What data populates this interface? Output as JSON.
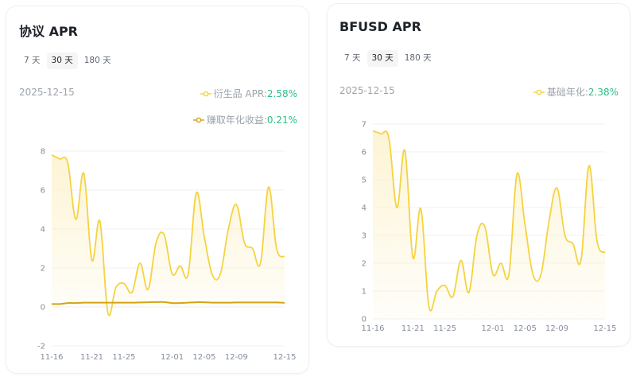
{
  "colors": {
    "derivatives_line": "#f5d33f",
    "earned_line": "#d4a414",
    "value_green": "#2ebd85",
    "grid": "#f0f0f0",
    "area_top": "#fdf3d0"
  },
  "left_card": {
    "title": "协议 APR",
    "tabs": [
      {
        "label": "7 天",
        "active": false
      },
      {
        "label": "30 天",
        "active": true
      },
      {
        "label": "180 天",
        "active": false
      }
    ],
    "date": "2025-12-15",
    "legend": [
      {
        "label": "衍生品 APR: ",
        "value": "2.58%"
      },
      {
        "label": "赚取年化收益: ",
        "value": "0.21%"
      }
    ]
  },
  "right_card": {
    "title": "BFUSD APR",
    "tabs": [
      {
        "label": "7 天",
        "active": false
      },
      {
        "label": "30 天",
        "active": true
      },
      {
        "label": "180 天",
        "active": false
      }
    ],
    "date": "2025-12-15",
    "legend": [
      {
        "label": "基础年化: ",
        "value": "2.38%"
      }
    ]
  },
  "chart_data": [
    {
      "type": "area",
      "title": "协议 APR",
      "xlabel": "",
      "ylabel": "",
      "ylim": [
        -2,
        8
      ],
      "yticks": [
        -2,
        0,
        2,
        4,
        6,
        8
      ],
      "xtick_labels": [
        "11-16",
        "11-21",
        "11-25",
        "12-01",
        "12-05",
        "12-09",
        "12-15"
      ],
      "grid": true,
      "legend_position": "top-right",
      "x": [
        "11-16",
        "11-17",
        "11-18",
        "11-19",
        "11-20",
        "11-21",
        "11-22",
        "11-23",
        "11-24",
        "11-25",
        "11-26",
        "11-27",
        "11-28",
        "11-29",
        "11-30",
        "12-01",
        "12-02",
        "12-03",
        "12-04",
        "12-05",
        "12-06",
        "12-07",
        "12-08",
        "12-09",
        "12-10",
        "12-11",
        "12-12",
        "12-13",
        "12-14",
        "12-15"
      ],
      "series": [
        {
          "name": "衍生品 APR",
          "values": [
            7.8,
            7.6,
            7.4,
            4.5,
            6.85,
            2.4,
            4.4,
            -0.3,
            1.0,
            1.2,
            0.75,
            2.25,
            0.9,
            3.3,
            3.7,
            1.7,
            2.1,
            1.7,
            5.85,
            3.6,
            1.65,
            1.7,
            4.0,
            5.25,
            3.3,
            3.0,
            2.25,
            6.15,
            3.0,
            2.58
          ]
        },
        {
          "name": "赚取年化收益",
          "values": [
            0.15,
            0.15,
            0.2,
            0.2,
            0.22,
            0.22,
            0.22,
            0.22,
            0.22,
            0.22,
            0.22,
            0.23,
            0.24,
            0.25,
            0.25,
            0.2,
            0.2,
            0.22,
            0.24,
            0.24,
            0.22,
            0.22,
            0.22,
            0.23,
            0.23,
            0.23,
            0.23,
            0.23,
            0.23,
            0.21
          ]
        }
      ]
    },
    {
      "type": "area",
      "title": "BFUSD APR",
      "xlabel": "",
      "ylabel": "",
      "ylim": [
        0,
        7
      ],
      "yticks": [
        0,
        1,
        2,
        3,
        4,
        5,
        6,
        7
      ],
      "xtick_labels": [
        "11-16",
        "11-21",
        "11-25",
        "12-01",
        "12-05",
        "12-09",
        "12-15"
      ],
      "grid": true,
      "legend_position": "top-right",
      "x": [
        "11-16",
        "11-17",
        "11-18",
        "11-19",
        "11-20",
        "11-21",
        "11-22",
        "11-23",
        "11-24",
        "11-25",
        "11-26",
        "11-27",
        "11-28",
        "11-29",
        "11-30",
        "12-01",
        "12-02",
        "12-03",
        "12-04",
        "12-05",
        "12-06",
        "12-07",
        "12-08",
        "12-09",
        "12-10",
        "12-11",
        "12-12",
        "12-13",
        "12-14",
        "12-15"
      ],
      "series": [
        {
          "name": "基础年化",
          "values": [
            6.75,
            6.65,
            6.5,
            4.0,
            6.05,
            2.2,
            3.95,
            0.45,
            1.0,
            1.2,
            0.8,
            2.1,
            0.95,
            3.0,
            3.3,
            1.6,
            2.0,
            1.6,
            5.2,
            3.4,
            1.6,
            1.6,
            3.5,
            4.7,
            3.0,
            2.7,
            2.1,
            5.5,
            2.8,
            2.38
          ]
        }
      ]
    }
  ]
}
